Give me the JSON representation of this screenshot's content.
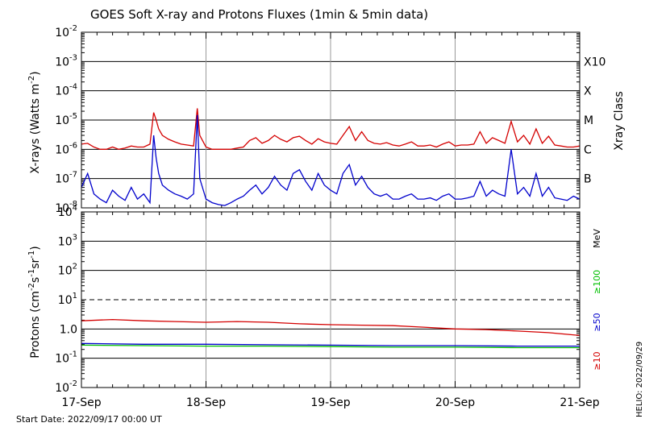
{
  "chart_data": [
    {
      "type": "line",
      "title": "GOES Soft X-ray and Protons Fluxes   (1min & 5min data)",
      "ylabel": "X-rays (Watts m",
      "ylabel_sup": "-2",
      "ylabel_close": ")",
      "yscale": "log",
      "ylim": [
        1e-08,
        0.01
      ],
      "y_ticks": [
        {
          "base": "10",
          "exp": "-2"
        },
        {
          "base": "10",
          "exp": "-3"
        },
        {
          "base": "10",
          "exp": "-4"
        },
        {
          "base": "10",
          "exp": "-5"
        },
        {
          "base": "10",
          "exp": "-6"
        },
        {
          "base": "10",
          "exp": "-7"
        },
        {
          "base": "10",
          "exp": "-8"
        }
      ],
      "right_axis_label": "Xray Class",
      "class_labels": [
        "X10",
        "X",
        "M",
        "C",
        "B"
      ],
      "grid": true,
      "x_days_range": [
        0,
        4
      ],
      "series": [
        {
          "color": "#d40000",
          "x": [
            0,
            0.05,
            0.1,
            0.15,
            0.2,
            0.25,
            0.3,
            0.35,
            0.4,
            0.45,
            0.5,
            0.55,
            0.58,
            0.6,
            0.62,
            0.65,
            0.7,
            0.75,
            0.8,
            0.85,
            0.9,
            0.93,
            0.95,
            1.0,
            1.05,
            1.1,
            1.15,
            1.2,
            1.25,
            1.3,
            1.35,
            1.4,
            1.45,
            1.5,
            1.55,
            1.6,
            1.65,
            1.7,
            1.75,
            1.8,
            1.85,
            1.9,
            1.95,
            2.0,
            2.05,
            2.1,
            2.15,
            2.2,
            2.25,
            2.3,
            2.35,
            2.4,
            2.45,
            2.5,
            2.55,
            2.6,
            2.65,
            2.7,
            2.75,
            2.8,
            2.85,
            2.9,
            2.95,
            3.0,
            3.05,
            3.1,
            3.15,
            3.2,
            3.25,
            3.3,
            3.35,
            3.4,
            3.45,
            3.5,
            3.55,
            3.6,
            3.65,
            3.7,
            3.75,
            3.8,
            3.85,
            3.9,
            3.95,
            4.0
          ],
          "values": [
            1.5e-06,
            1.6e-06,
            1.2e-06,
            1e-06,
            1e-06,
            1.2e-06,
            1e-06,
            1.1e-06,
            1.3e-06,
            1.2e-06,
            1.2e-06,
            1.5e-06,
            1.8e-05,
            1e-05,
            5e-06,
            3e-06,
            2.2e-06,
            1.8e-06,
            1.5e-06,
            1.4e-06,
            1.3e-06,
            2.5e-05,
            3e-06,
            1.2e-06,
            1e-06,
            1e-06,
            1e-06,
            1e-06,
            1.1e-06,
            1.2e-06,
            2e-06,
            2.5e-06,
            1.6e-06,
            2e-06,
            3e-06,
            2.2e-06,
            1.8e-06,
            2.5e-06,
            2.8e-06,
            2e-06,
            1.5e-06,
            2.3e-06,
            1.8e-06,
            1.6e-06,
            1.5e-06,
            3e-06,
            6e-06,
            2e-06,
            4e-06,
            2e-06,
            1.6e-06,
            1.5e-06,
            1.7e-06,
            1.4e-06,
            1.3e-06,
            1.5e-06,
            1.8e-06,
            1.3e-06,
            1.3e-06,
            1.4e-06,
            1.2e-06,
            1.5e-06,
            1.8e-06,
            1.3e-06,
            1.4e-06,
            1.4e-06,
            1.5e-06,
            4e-06,
            1.6e-06,
            2.5e-06,
            2e-06,
            1.6e-06,
            9e-06,
            1.8e-06,
            3e-06,
            1.5e-06,
            5e-06,
            1.6e-06,
            2.8e-06,
            1.4e-06,
            1.3e-06,
            1.2e-06,
            1.2e-06,
            1.3e-06
          ]
        },
        {
          "color": "#0000cc",
          "x": [
            0,
            0.05,
            0.1,
            0.15,
            0.2,
            0.25,
            0.3,
            0.35,
            0.4,
            0.45,
            0.5,
            0.55,
            0.58,
            0.6,
            0.62,
            0.65,
            0.7,
            0.75,
            0.8,
            0.85,
            0.9,
            0.93,
            0.95,
            1.0,
            1.05,
            1.1,
            1.15,
            1.2,
            1.25,
            1.3,
            1.35,
            1.4,
            1.45,
            1.5,
            1.55,
            1.6,
            1.65,
            1.7,
            1.75,
            1.8,
            1.85,
            1.9,
            1.95,
            2.0,
            2.05,
            2.1,
            2.15,
            2.2,
            2.25,
            2.3,
            2.35,
            2.4,
            2.45,
            2.5,
            2.55,
            2.6,
            2.65,
            2.7,
            2.75,
            2.8,
            2.85,
            2.9,
            2.95,
            3.0,
            3.05,
            3.1,
            3.15,
            3.2,
            3.25,
            3.3,
            3.35,
            3.4,
            3.45,
            3.5,
            3.55,
            3.6,
            3.65,
            3.7,
            3.75,
            3.8,
            3.85,
            3.9,
            3.95,
            4.0
          ],
          "values": [
            5e-08,
            1.5e-07,
            3e-08,
            2e-08,
            1.5e-08,
            4e-08,
            2.5e-08,
            1.8e-08,
            5e-08,
            2e-08,
            3e-08,
            1.5e-08,
            3e-06,
            5e-07,
            1.5e-07,
            6e-08,
            4e-08,
            3e-08,
            2.5e-08,
            2e-08,
            3e-08,
            1.5e-05,
            1e-07,
            2e-08,
            1.5e-08,
            1.3e-08,
            1.2e-08,
            1.5e-08,
            2e-08,
            2.5e-08,
            4e-08,
            6e-08,
            3e-08,
            5e-08,
            1.2e-07,
            6e-08,
            4e-08,
            1.5e-07,
            2e-07,
            8e-08,
            4e-08,
            1.5e-07,
            6e-08,
            4e-08,
            3e-08,
            1.5e-07,
            3e-07,
            6e-08,
            1.2e-07,
            5e-08,
            3e-08,
            2.5e-08,
            3e-08,
            2e-08,
            2e-08,
            2.5e-08,
            3e-08,
            2e-08,
            2e-08,
            2.2e-08,
            1.8e-08,
            2.5e-08,
            3e-08,
            2e-08,
            2e-08,
            2.2e-08,
            2.5e-08,
            8e-08,
            2.5e-08,
            4e-08,
            3e-08,
            2.5e-08,
            1e-06,
            3e-08,
            5e-08,
            2.5e-08,
            1.5e-07,
            2.5e-08,
            5e-08,
            2.2e-08,
            2e-08,
            1.8e-08,
            2.5e-08,
            2e-08
          ]
        }
      ]
    },
    {
      "type": "line",
      "ylabel": "Protons (cm",
      "ylabel_sup1": "-2",
      "ylabel_mid": "s",
      "ylabel_sup2": "-1",
      "ylabel_mid2": "sr",
      "ylabel_sup3": "-1",
      "ylabel_close": ")",
      "yscale": "log",
      "ylim": [
        0.01,
        10000
      ],
      "y_ticks": [
        {
          "base": "10",
          "exp": "4"
        },
        {
          "base": "10",
          "exp": "3"
        },
        {
          "base": "10",
          "exp": "2"
        },
        {
          "base": "10",
          "exp": "1"
        },
        {
          "base": "10",
          "exp": "0",
          "plain": "1.0"
        },
        {
          "base": "10",
          "exp": "-1"
        },
        {
          "base": "10",
          "exp": "-2"
        }
      ],
      "threshold_line": 10,
      "grid": true,
      "right_labels": [
        {
          "text": "MeV",
          "color": "#000000"
        },
        {
          "text": "≥100",
          "color": "#00c000"
        },
        {
          "text": "≥50",
          "color": "#0000cc"
        },
        {
          "text": "≥10",
          "color": "#d40000"
        }
      ],
      "x_days_range": [
        0,
        4
      ],
      "series": [
        {
          "name": "≥10",
          "color": "#d40000",
          "x": [
            0,
            0.25,
            0.5,
            0.75,
            1.0,
            1.25,
            1.5,
            1.75,
            2.0,
            2.25,
            2.5,
            2.75,
            3.0,
            3.25,
            3.5,
            3.75,
            4.0
          ],
          "values": [
            1.9,
            2.1,
            1.9,
            1.8,
            1.7,
            1.8,
            1.7,
            1.5,
            1.4,
            1.35,
            1.3,
            1.15,
            1.0,
            0.95,
            0.85,
            0.75,
            0.6
          ]
        },
        {
          "name": "≥50",
          "color": "#0000cc",
          "x": [
            0,
            0.5,
            1.0,
            1.5,
            2.0,
            2.5,
            3.0,
            3.5,
            4.0
          ],
          "values": [
            0.32,
            0.3,
            0.3,
            0.29,
            0.28,
            0.27,
            0.27,
            0.26,
            0.26
          ]
        },
        {
          "name": "≥100",
          "color": "#00c000",
          "x": [
            0,
            0.5,
            1.0,
            1.5,
            2.0,
            2.5,
            3.0,
            3.5,
            4.0
          ],
          "values": [
            0.28,
            0.27,
            0.26,
            0.26,
            0.25,
            0.24,
            0.24,
            0.23,
            0.23
          ]
        }
      ]
    }
  ],
  "x_axis": {
    "tick_labels": [
      "17-Sep",
      "18-Sep",
      "19-Sep",
      "20-Sep",
      "21-Sep"
    ]
  },
  "footer": {
    "start_date": "Start Date: 2022/09/17 00:00 UT",
    "stamp": "HELIO: 2022/09/29"
  }
}
